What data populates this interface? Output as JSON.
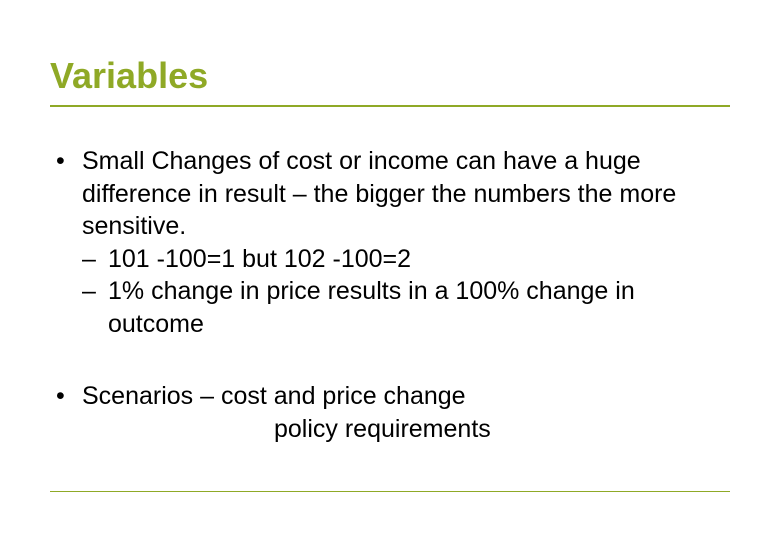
{
  "title": "Variables",
  "bullets": {
    "item1": {
      "marker": "•",
      "text": "Small Changes of cost or income can have a huge difference in result – the bigger the numbers the more sensitive.",
      "sub1_marker": "–",
      "sub1_text": "101 -100=1 but 102 -100=2",
      "sub2_marker": "–",
      "sub2_text": "1% change in price results in a 100% change in outcome"
    },
    "item2": {
      "marker": "•",
      "line1": "Scenarios –  cost and price change",
      "line2": "policy requirements"
    }
  },
  "colors": {
    "accent": "#8fa926",
    "text": "#000000",
    "background": "#ffffff"
  },
  "typography": {
    "title_fontsize": 36,
    "body_fontsize": 25,
    "title_weight": "bold",
    "font_family": "Arial"
  }
}
